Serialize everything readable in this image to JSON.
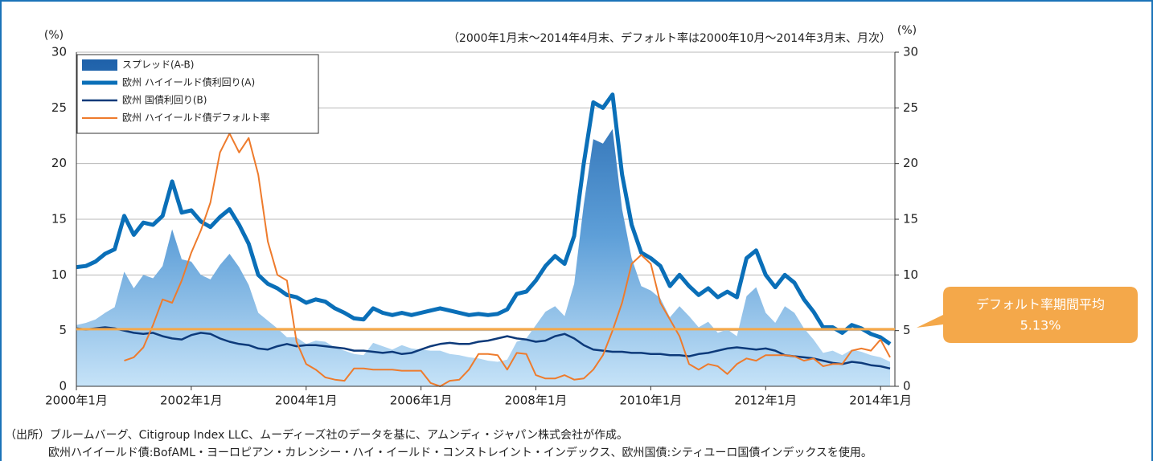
{
  "chart_data": {
    "type": "line",
    "note": "（2000年1月末～2014年4月末、デフォルト率は2000年10月～2014年3月末、月次）",
    "y_label": "(%)",
    "y2_label": "(%)",
    "sources": [
      "（出所）ブルームバーグ、Citigroup Index LLC、ムーディーズ社のデータを基に、アムンディ・ジャパン株式会社が作成。",
      "欧州ハイイールド債:BofAML・ヨーロピアン・カレンシー・ハイ・イールド・コンストレイント・インデックス、欧州国債:シティユーロ国債インデックスを使用。"
    ],
    "x": [
      "2000-01",
      "2000-03",
      "2000-05",
      "2000-07",
      "2000-09",
      "2000-11",
      "2001-01",
      "2001-03",
      "2001-05",
      "2001-07",
      "2001-09",
      "2001-11",
      "2002-01",
      "2002-03",
      "2002-05",
      "2002-07",
      "2002-09",
      "2002-11",
      "2003-01",
      "2003-03",
      "2003-05",
      "2003-07",
      "2003-09",
      "2003-11",
      "2004-01",
      "2004-03",
      "2004-05",
      "2004-07",
      "2004-09",
      "2004-11",
      "2005-01",
      "2005-03",
      "2005-05",
      "2005-07",
      "2005-09",
      "2005-11",
      "2006-01",
      "2006-03",
      "2006-05",
      "2006-07",
      "2006-09",
      "2006-11",
      "2007-01",
      "2007-03",
      "2007-05",
      "2007-07",
      "2007-09",
      "2007-11",
      "2008-01",
      "2008-03",
      "2008-05",
      "2008-07",
      "2008-09",
      "2008-11",
      "2009-01",
      "2009-03",
      "2009-05",
      "2009-07",
      "2009-09",
      "2009-11",
      "2010-01",
      "2010-03",
      "2010-05",
      "2010-07",
      "2010-09",
      "2010-11",
      "2011-01",
      "2011-03",
      "2011-05",
      "2011-07",
      "2011-09",
      "2011-11",
      "2012-01",
      "2012-03",
      "2012-05",
      "2012-07",
      "2012-09",
      "2012-11",
      "2013-01",
      "2013-03",
      "2013-05",
      "2013-07",
      "2013-09",
      "2013-11",
      "2014-01",
      "2014-03"
    ],
    "xlim": [
      "2000-01",
      "2014-04"
    ],
    "xticks": [
      {
        "value": "2000-01",
        "label": "2000年1月"
      },
      {
        "value": "2002-01",
        "label": "2002年1月"
      },
      {
        "value": "2004-01",
        "label": "2004年1月"
      },
      {
        "value": "2006-01",
        "label": "2006年1月"
      },
      {
        "value": "2008-01",
        "label": "2008年1月"
      },
      {
        "value": "2010-01",
        "label": "2010年1月"
      },
      {
        "value": "2012-01",
        "label": "2012年1月"
      },
      {
        "value": "2014-01",
        "label": "2014年1月"
      }
    ],
    "ylim": [
      0,
      30
    ],
    "yticks": [
      0,
      5,
      10,
      15,
      20,
      25,
      30
    ],
    "y2lim": [
      0,
      30
    ],
    "y2ticks": [
      0,
      5,
      10,
      15,
      20,
      25,
      30
    ],
    "grid": true,
    "legend": "top-left",
    "series": [
      {
        "name": "スプレッド(A-B)",
        "color": "#2f78c0",
        "area": true,
        "values": [
          5.5,
          5.7,
          6.0,
          6.6,
          7.1,
          10.3,
          8.8,
          10.0,
          9.7,
          10.8,
          14.1,
          11.4,
          11.2,
          10.0,
          9.6,
          10.9,
          11.9,
          10.7,
          9.1,
          6.6,
          5.9,
          5.2,
          4.4,
          4.4,
          3.8,
          4.1,
          4.0,
          3.5,
          3.2,
          2.9,
          2.8,
          3.9,
          3.6,
          3.3,
          3.7,
          3.4,
          3.3,
          3.2,
          3.2,
          2.9,
          2.8,
          2.6,
          2.5,
          2.3,
          2.2,
          2.4,
          4.0,
          4.3,
          5.5,
          6.7,
          7.2,
          6.3,
          9.2,
          16.3,
          22.2,
          21.8,
          23.1,
          15.9,
          11.5,
          9.0,
          8.6,
          7.9,
          6.2,
          7.2,
          6.3,
          5.3,
          5.8,
          4.8,
          5.1,
          4.5,
          8.1,
          8.9,
          6.6,
          5.7,
          7.2,
          6.6,
          5.2,
          4.2,
          3.0,
          3.2,
          2.8,
          3.3,
          3.1,
          2.8,
          2.6,
          2.2
        ]
      },
      {
        "name": "欧州 ハイイールド債利回り(A)",
        "color": "#0a6fb8",
        "width": 5,
        "values": [
          10.7,
          10.8,
          11.2,
          11.9,
          12.3,
          15.3,
          13.6,
          14.7,
          14.5,
          15.3,
          18.4,
          15.6,
          15.8,
          14.8,
          14.3,
          15.2,
          15.9,
          14.5,
          12.8,
          10.0,
          9.2,
          8.8,
          8.2,
          8.0,
          7.5,
          7.8,
          7.6,
          7.0,
          6.6,
          6.1,
          6.0,
          7.0,
          6.6,
          6.4,
          6.6,
          6.4,
          6.6,
          6.8,
          7.0,
          6.8,
          6.6,
          6.4,
          6.5,
          6.4,
          6.5,
          6.9,
          8.3,
          8.5,
          9.5,
          10.8,
          11.7,
          11.0,
          13.5,
          20.0,
          25.5,
          25.0,
          26.2,
          19.0,
          14.5,
          12.0,
          11.5,
          10.8,
          9.0,
          10.0,
          9.0,
          8.2,
          8.8,
          8.0,
          8.5,
          8.0,
          11.5,
          12.2,
          10.0,
          8.9,
          10.0,
          9.3,
          7.8,
          6.7,
          5.3,
          5.3,
          4.8,
          5.5,
          5.2,
          4.7,
          4.4,
          3.8
        ]
      },
      {
        "name": "欧州 国債利回り(B)",
        "color": "#0d3a7a",
        "width": 2.5,
        "values": [
          5.2,
          5.1,
          5.2,
          5.3,
          5.2,
          5.0,
          4.8,
          4.7,
          4.8,
          4.5,
          4.3,
          4.2,
          4.6,
          4.8,
          4.7,
          4.3,
          4.0,
          3.8,
          3.7,
          3.4,
          3.3,
          3.6,
          3.8,
          3.6,
          3.7,
          3.7,
          3.6,
          3.5,
          3.4,
          3.2,
          3.2,
          3.1,
          3.0,
          3.1,
          2.9,
          3.0,
          3.3,
          3.6,
          3.8,
          3.9,
          3.8,
          3.8,
          4.0,
          4.1,
          4.3,
          4.5,
          4.3,
          4.2,
          4.0,
          4.1,
          4.5,
          4.7,
          4.3,
          3.7,
          3.3,
          3.2,
          3.1,
          3.1,
          3.0,
          3.0,
          2.9,
          2.9,
          2.8,
          2.8,
          2.7,
          2.9,
          3.0,
          3.2,
          3.4,
          3.5,
          3.4,
          3.3,
          3.4,
          3.2,
          2.8,
          2.7,
          2.6,
          2.5,
          2.3,
          2.1,
          2.0,
          2.2,
          2.1,
          1.9,
          1.8,
          1.6
        ]
      },
      {
        "name": "欧州 ハイイールド債デフォルト率",
        "color": "#ee7b2c",
        "width": 2,
        "axis": "y2",
        "values": [
          null,
          null,
          null,
          null,
          null,
          2.3,
          2.6,
          3.5,
          5.5,
          7.8,
          7.5,
          9.5,
          12.0,
          14.0,
          16.5,
          21.0,
          22.7,
          21.0,
          22.3,
          19.0,
          13.0,
          10.0,
          9.5,
          4.0,
          2.0,
          1.5,
          0.8,
          0.6,
          0.5,
          1.6,
          1.6,
          1.5,
          1.5,
          1.5,
          1.4,
          1.4,
          1.4,
          0.3,
          0.0,
          0.5,
          0.6,
          1.5,
          2.9,
          2.9,
          2.8,
          1.5,
          3.0,
          2.9,
          1.0,
          0.7,
          0.7,
          1.0,
          0.6,
          0.7,
          1.5,
          2.8,
          5.0,
          7.5,
          11.0,
          11.8,
          11.0,
          7.5,
          6.0,
          4.5,
          2.0,
          1.5,
          2.0,
          1.8,
          1.1,
          2.0,
          2.5,
          2.3,
          2.8,
          2.8,
          2.8,
          2.7,
          2.3,
          2.5,
          1.8,
          2.0,
          2.0,
          3.2,
          3.4,
          3.2,
          4.2,
          2.6
        ]
      }
    ],
    "annotations": [
      {
        "text": "デフォルト率期間平均",
        "value": 5.13,
        "value_label": "5.13%",
        "color": "#f4a84a"
      }
    ]
  }
}
